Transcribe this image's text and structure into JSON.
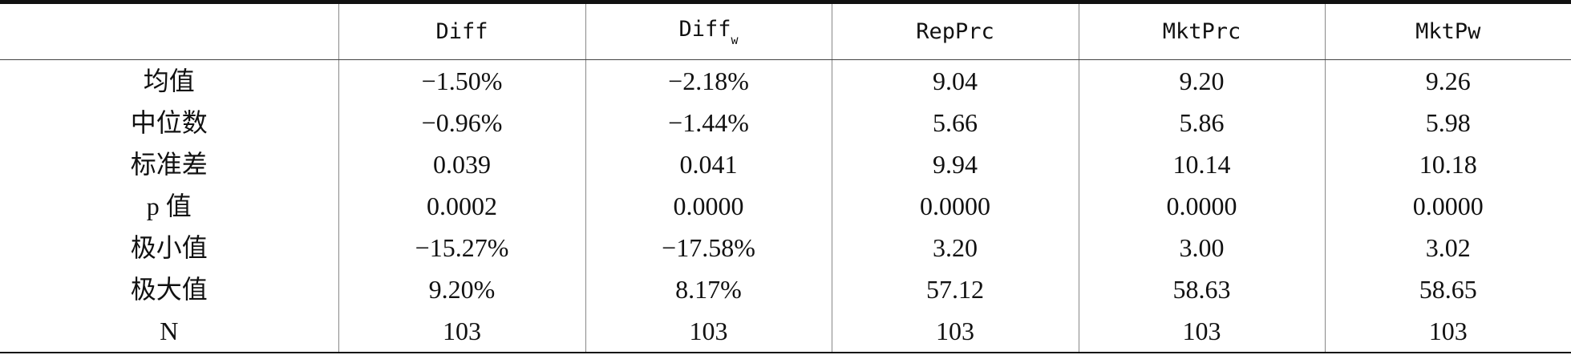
{
  "table": {
    "header": [
      {
        "text": "Diff"
      },
      {
        "text": "Diff",
        "sub": "w"
      },
      {
        "text": "RepPrc"
      },
      {
        "text": "MktPrc"
      },
      {
        "text": "MktPw"
      }
    ],
    "rows": [
      [
        "均值",
        "−1.50%",
        "−2.18%",
        "9.04",
        "9.20",
        "9.26"
      ],
      [
        "中位数",
        "−0.96%",
        "−1.44%",
        "5.66",
        "5.86",
        "5.98"
      ],
      [
        "标准差",
        "0.039",
        "0.041",
        "9.94",
        "10.14",
        "10.18"
      ],
      [
        "p 值",
        "0.0002",
        "0.0000",
        "0.0000",
        "0.0000",
        "0.0000"
      ],
      [
        "极小值",
        "−15.27%",
        "−17.58%",
        "3.20",
        "3.00",
        "3.02"
      ],
      [
        "极大值",
        "9.20%",
        "8.17%",
        "57.12",
        "58.63",
        "58.65"
      ],
      [
        "N",
        "103",
        "103",
        "103",
        "103",
        "103"
      ]
    ]
  }
}
